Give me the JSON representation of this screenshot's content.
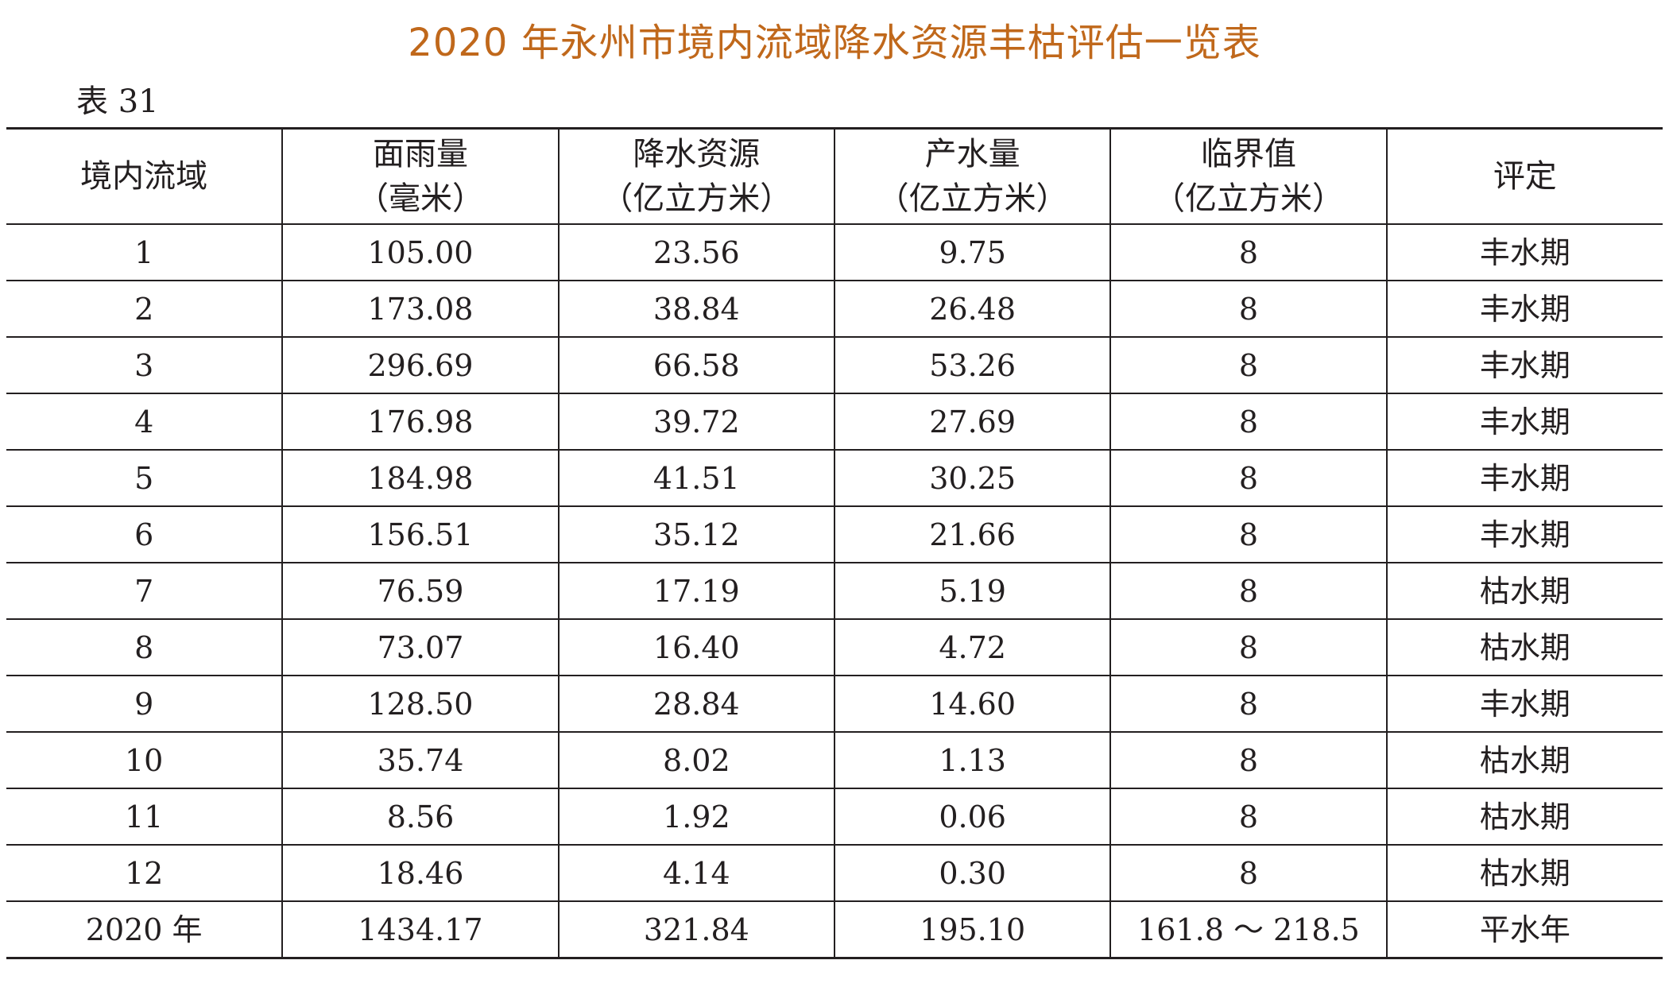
{
  "title": "2020 年永州市境内流域降水资源丰枯评估一览表",
  "table_label": "表 31",
  "headers": [
    {
      "name": "境内流域",
      "unit": ""
    },
    {
      "name": "面雨量",
      "unit": "（毫米）"
    },
    {
      "name": "降水资源",
      "unit": "（亿立方米）"
    },
    {
      "name": "产水量",
      "unit": "（亿立方米）"
    },
    {
      "name": "临界值",
      "unit": "（亿立方米）"
    },
    {
      "name": "评定",
      "unit": ""
    }
  ],
  "rows": [
    [
      "1",
      "105.00",
      "23.56",
      "9.75",
      "8",
      "丰水期"
    ],
    [
      "2",
      "173.08",
      "38.84",
      "26.48",
      "8",
      "丰水期"
    ],
    [
      "3",
      "296.69",
      "66.58",
      "53.26",
      "8",
      "丰水期"
    ],
    [
      "4",
      "176.98",
      "39.72",
      "27.69",
      "8",
      "丰水期"
    ],
    [
      "5",
      "184.98",
      "41.51",
      "30.25",
      "8",
      "丰水期"
    ],
    [
      "6",
      "156.51",
      "35.12",
      "21.66",
      "8",
      "丰水期"
    ],
    [
      "7",
      "76.59",
      "17.19",
      "5.19",
      "8",
      "枯水期"
    ],
    [
      "8",
      "73.07",
      "16.40",
      "4.72",
      "8",
      "枯水期"
    ],
    [
      "9",
      "128.50",
      "28.84",
      "14.60",
      "8",
      "丰水期"
    ],
    [
      "10",
      "35.74",
      "8.02",
      "1.13",
      "8",
      "枯水期"
    ],
    [
      "11",
      "8.56",
      "1.92",
      "0.06",
      "8",
      "枯水期"
    ],
    [
      "12",
      "18.46",
      "4.14",
      "0.30",
      "8",
      "枯水期"
    ],
    [
      "2020 年",
      "1434.17",
      "321.84",
      "195.10",
      "161.8 ～ 218.5",
      "平水年"
    ]
  ],
  "colors": {
    "title": "#c0681b",
    "text": "#231f20",
    "rule": "#231f20"
  }
}
